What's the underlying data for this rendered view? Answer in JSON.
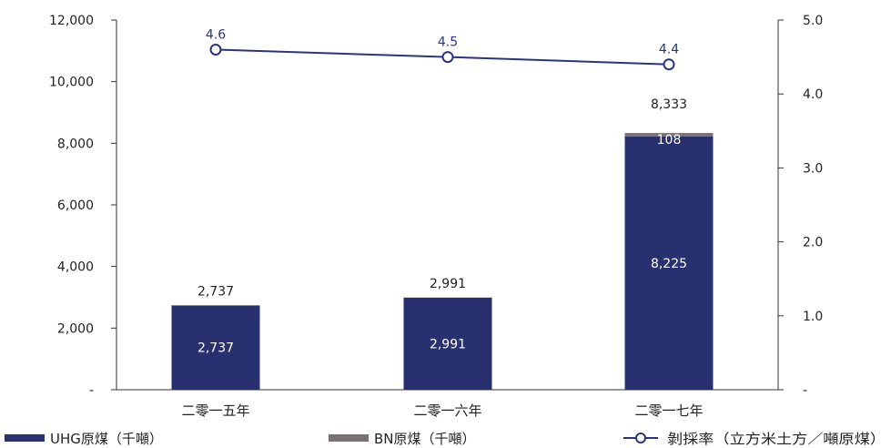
{
  "chart_data": {
    "type": "bar",
    "stacked": true,
    "categories": [
      "二零一五年",
      "二零一六年",
      "二零一七年"
    ],
    "series": [
      {
        "name": "UHG原煤（千噸）",
        "type": "bar",
        "axis": "left",
        "color": "#28306f",
        "values": [
          2737,
          2991,
          8225
        ],
        "labels": [
          "2,737",
          "2,991",
          "8,225"
        ]
      },
      {
        "name": "BN原煤（千噸）",
        "type": "bar",
        "axis": "left",
        "color": "#7a7272",
        "values": [
          0,
          0,
          108
        ],
        "labels": [
          "",
          "",
          "108"
        ]
      },
      {
        "name": "剝採率（立方米土方／噸原煤）",
        "type": "line",
        "axis": "right",
        "color": "#2a3580",
        "values": [
          4.6,
          4.5,
          4.4
        ],
        "labels": [
          "4.6",
          "4.5",
          "4.4"
        ]
      }
    ],
    "totals": [
      "2,737",
      "2,991",
      "8,333"
    ],
    "left_axis": {
      "ticks": [
        0,
        2000,
        4000,
        6000,
        8000,
        10000,
        12000
      ],
      "tick_labels": [
        "-",
        "2,000",
        "4,000",
        "6,000",
        "8,000",
        "10,000",
        "12,000"
      ],
      "ylim": [
        0,
        12000
      ]
    },
    "right_axis": {
      "ticks": [
        0,
        1,
        2,
        3,
        4,
        5
      ],
      "tick_labels": [
        "-",
        "1.0",
        "2.0",
        "3.0",
        "4.0",
        "5.0"
      ],
      "ylim": [
        0,
        5
      ]
    },
    "legend_position": "bottom",
    "grid": false
  }
}
